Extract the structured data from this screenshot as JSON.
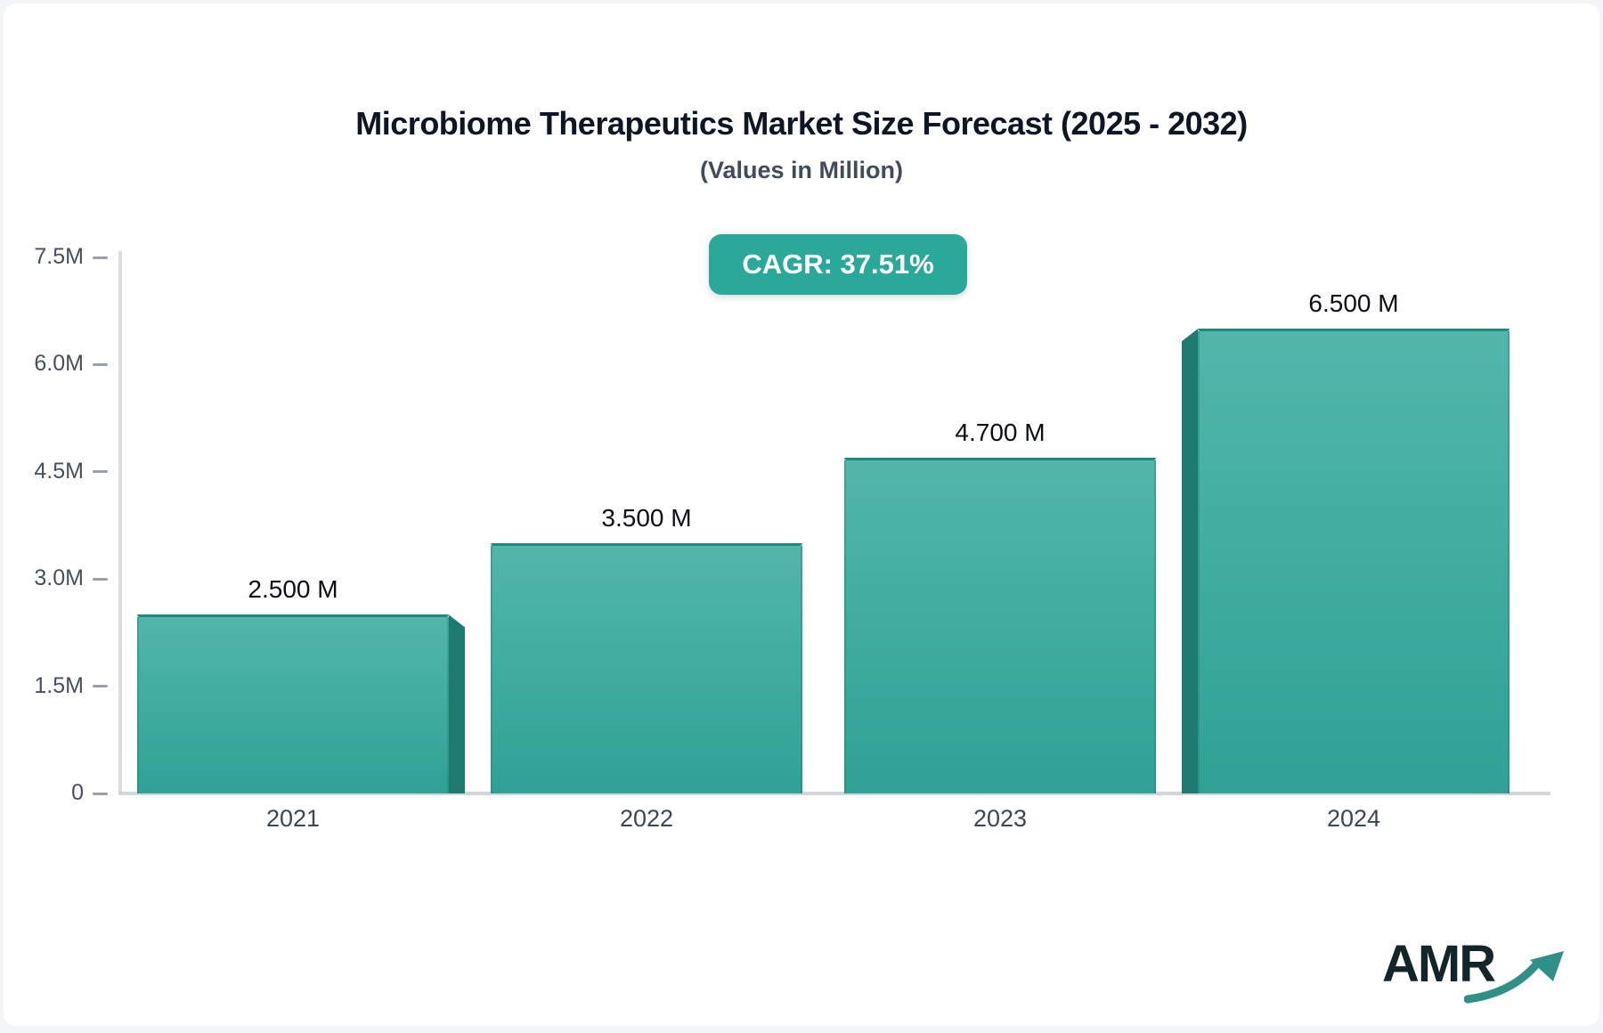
{
  "header": {
    "title": "Microbiome Therapeutics Market Size Forecast (2025 - 2032)",
    "subtitle": "(Values in Million)",
    "cagr_label": "CAGR: 37.51%"
  },
  "chart_data": {
    "type": "bar",
    "title": "Microbiome Therapeutics Market Size Forecast (2025 - 2032)",
    "subtitle": "(Values in Million)",
    "cagr_percent": 37.51,
    "categories": [
      "2021",
      "2022",
      "2023",
      "2024"
    ],
    "values": [
      2.5,
      3.5,
      4.7,
      6.5
    ],
    "value_labels": [
      "2.500 M",
      "3.500 M",
      "4.700 M",
      "6.500 M"
    ],
    "unit": "Million",
    "xlabel": "",
    "ylabel": "",
    "ylim": [
      0,
      7.5
    ],
    "yticks": [
      0,
      1.5,
      3.0,
      4.5,
      6.0,
      7.5
    ],
    "ytick_labels": [
      "0",
      "1.5M",
      "3.0M",
      "4.5M",
      "6.0M",
      "7.5M"
    ],
    "grid": false,
    "legend": false,
    "colors": {
      "bar_gradient_top": "#52b6ab",
      "bar_gradient_bottom": "#2fa295",
      "bar_side": "#1d7a6e",
      "badge_background": "#2aa89a",
      "axis_line": "#dadde1",
      "tick_text": "#46505e"
    }
  },
  "branding": {
    "logo_text": "AMR"
  }
}
